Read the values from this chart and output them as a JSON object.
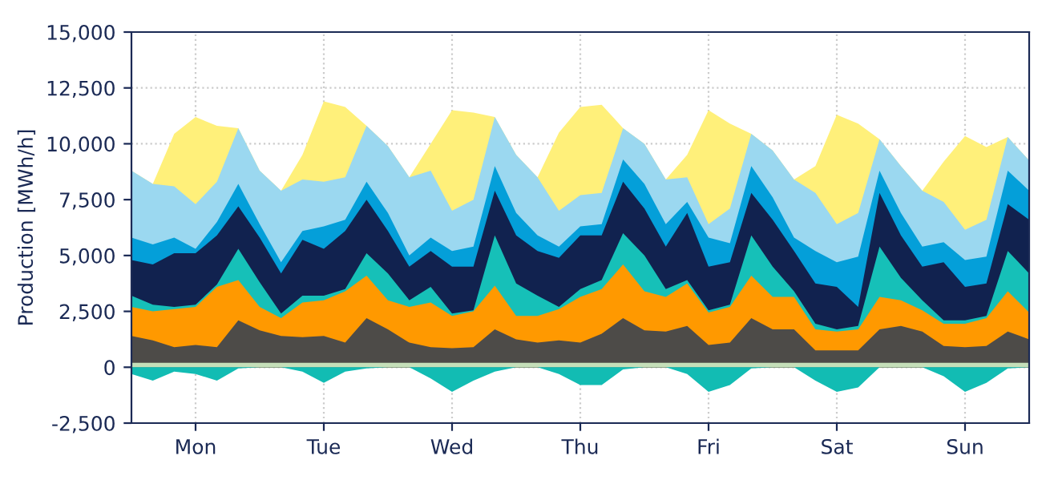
{
  "chart_data": {
    "type": "area",
    "ylabel": "Production [MWh/h]",
    "grid": true,
    "categories": [
      null,
      null,
      null,
      "Mon",
      null,
      null,
      null,
      null,
      null,
      "Tue",
      null,
      null,
      null,
      null,
      null,
      "Wed",
      null,
      null,
      null,
      null,
      null,
      "Thu",
      null,
      null,
      null,
      null,
      null,
      "Fri",
      null,
      null,
      null,
      null,
      null,
      "Sat",
      null,
      null,
      null,
      null,
      null,
      "Sun",
      null,
      null,
      null
    ],
    "ylim": [
      -2500,
      15000
    ],
    "yticks": [
      {
        "value": -2500,
        "label": "-2,500"
      },
      {
        "value": 0,
        "label": "0"
      },
      {
        "value": 2500,
        "label": "2,500"
      },
      {
        "value": 5000,
        "label": "5,000"
      },
      {
        "value": 7500,
        "label": "7,500"
      },
      {
        "value": 10000,
        "label": "10,000"
      },
      {
        "value": 12500,
        "label": "12,500"
      },
      {
        "value": 15000,
        "label": "15,000"
      }
    ],
    "series": [
      {
        "color": "#fff07a",
        "values": [
          8800,
          8200,
          10450,
          11200,
          10800,
          10700,
          8800,
          7900,
          9500,
          11900,
          11650,
          10800,
          9900,
          8500,
          10000,
          11500,
          11400,
          11200,
          9500,
          8500,
          10500,
          11650,
          11750,
          10700,
          10000,
          8400,
          9500,
          11500,
          10900,
          10450,
          9700,
          8400,
          9000,
          11300,
          10900,
          10200,
          9000,
          7900,
          9200,
          10350,
          9850,
          10300,
          9250
        ]
      },
      {
        "color": "#9bd8f0",
        "values": [
          8800,
          8200,
          8100,
          7300,
          8300,
          10700,
          8800,
          7900,
          8400,
          8300,
          8500,
          10800,
          9900,
          8500,
          8800,
          7000,
          7500,
          11200,
          9500,
          8500,
          7000,
          7700,
          7800,
          10700,
          10000,
          8400,
          8500,
          6400,
          7100,
          10450,
          9700,
          8400,
          7800,
          6400,
          6900,
          10200,
          9000,
          7900,
          7400,
          6150,
          6600,
          10300,
          9250
        ]
      },
      {
        "color": "#049fd9",
        "values": [
          5800,
          5500,
          5800,
          5300,
          6500,
          8200,
          6400,
          4700,
          6100,
          6300,
          6600,
          8300,
          6900,
          5000,
          5800,
          5200,
          5400,
          9000,
          6900,
          5900,
          5400,
          6300,
          6400,
          9300,
          8200,
          6400,
          7400,
          5800,
          5550,
          9000,
          7600,
          5800,
          5200,
          4700,
          4950,
          8800,
          6900,
          5400,
          5600,
          4800,
          4950,
          8800,
          7900
        ]
      },
      {
        "color": "#11224f",
        "values": [
          4800,
          4600,
          5100,
          5100,
          5900,
          7200,
          5800,
          4200,
          5700,
          5300,
          6100,
          7500,
          6100,
          4500,
          5200,
          4500,
          4500,
          7900,
          5900,
          5200,
          4900,
          5900,
          5900,
          8300,
          7100,
          5400,
          6900,
          4500,
          4700,
          7800,
          6600,
          5200,
          3750,
          3600,
          2700,
          7800,
          5900,
          4500,
          4700,
          3600,
          3750,
          7300,
          6600
        ]
      },
      {
        "color": "#16c0b8",
        "values": [
          3200,
          2800,
          2700,
          2800,
          3700,
          5300,
          3800,
          2400,
          3200,
          3200,
          3500,
          5100,
          4200,
          3000,
          3600,
          2400,
          2550,
          5900,
          3750,
          3200,
          2700,
          3500,
          3900,
          6000,
          5000,
          3500,
          3900,
          2550,
          2800,
          5900,
          4500,
          3400,
          1950,
          1700,
          1850,
          5400,
          4000,
          3000,
          2100,
          2100,
          2300,
          5200,
          4200
        ]
      },
      {
        "color": "#ff9900",
        "values": [
          2700,
          2500,
          2600,
          2700,
          3600,
          3900,
          2700,
          2200,
          2900,
          3000,
          3400,
          4100,
          3000,
          2700,
          2900,
          2300,
          2500,
          3650,
          2300,
          2300,
          2600,
          3150,
          3500,
          4600,
          3400,
          3150,
          3750,
          2450,
          2700,
          4100,
          3150,
          3150,
          1700,
          1600,
          1700,
          3150,
          3000,
          2550,
          1950,
          1950,
          2200,
          3400,
          2450
        ]
      },
      {
        "color": "#4d4b48",
        "values": [
          1400,
          1200,
          900,
          1000,
          900,
          2100,
          1650,
          1400,
          1350,
          1400,
          1100,
          2200,
          1700,
          1100,
          900,
          850,
          900,
          1700,
          1250,
          1100,
          1200,
          1100,
          1500,
          2200,
          1650,
          1600,
          1850,
          1000,
          1100,
          2200,
          1700,
          1700,
          750,
          750,
          750,
          1700,
          1850,
          1600,
          950,
          900,
          950,
          1600,
          1250
        ]
      },
      {
        "color": "#c5dfb9",
        "values": [
          200,
          200,
          200,
          200,
          200,
          200,
          200,
          200,
          200,
          200,
          200,
          200,
          200,
          200,
          200,
          200,
          200,
          200,
          200,
          200,
          200,
          200,
          200,
          200,
          200,
          200,
          200,
          200,
          200,
          200,
          200,
          200,
          200,
          200,
          200,
          200,
          200,
          200,
          200,
          200,
          200,
          200,
          200
        ]
      },
      {
        "color": "#12bcb3",
        "values": [
          -300,
          -600,
          -200,
          -300,
          -600,
          -50,
          0,
          0,
          -200,
          -700,
          -200,
          -50,
          0,
          0,
          -500,
          -1100,
          -600,
          -200,
          0,
          0,
          -300,
          -800,
          -800,
          -100,
          0,
          0,
          -300,
          -1100,
          -800,
          -50,
          0,
          0,
          -600,
          -1100,
          -900,
          0,
          0,
          0,
          -400,
          -1100,
          -700,
          -50,
          0
        ]
      }
    ]
  }
}
